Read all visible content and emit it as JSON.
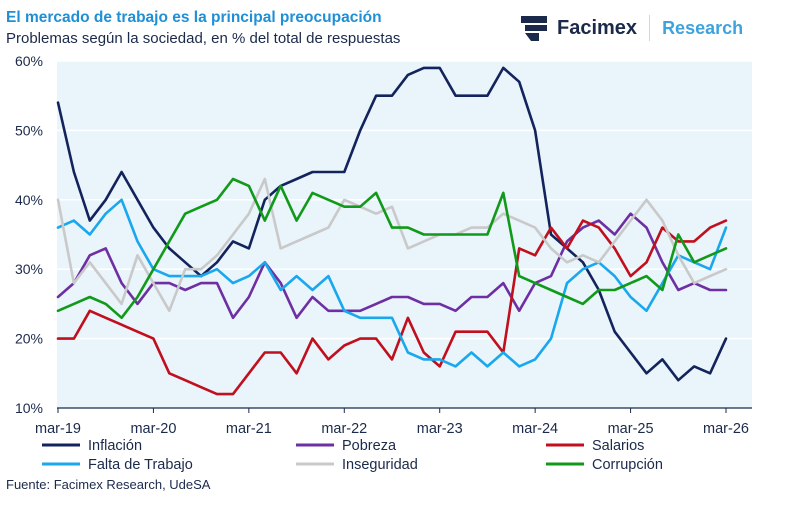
{
  "header": {
    "title": "El mercado de trabajo es la principal preocupación",
    "subtitle": "Problemas según la sociedad, en % del total de respuestas"
  },
  "logo": {
    "brand": "Facimex",
    "tagline": "Research"
  },
  "source": "Fuente: Facimex Research, UdeSA",
  "colors": {
    "plot_background": "#eaf4fb",
    "grid": "#ffffff",
    "axis": "#1b2a4a"
  },
  "chart_data": {
    "type": "line",
    "title": "El mercado de trabajo es la principal preocupación",
    "subtitle": "Problemas según la sociedad, en % del total de respuestas",
    "xlabel": "",
    "ylabel": "",
    "ylim": [
      10,
      60
    ],
    "y_ticks": [
      10,
      20,
      30,
      40,
      50,
      60
    ],
    "y_tick_labels": [
      "10%",
      "20%",
      "30%",
      "40%",
      "50%",
      "60%"
    ],
    "x_range": [
      0,
      42
    ],
    "x_ticks": [
      {
        "x": 0,
        "label": "mar-19"
      },
      {
        "x": 6,
        "label": "mar-20"
      },
      {
        "x": 12,
        "label": "mar-21"
      },
      {
        "x": 18,
        "label": "mar-22"
      },
      {
        "x": 24,
        "label": "mar-23"
      },
      {
        "x": 30,
        "label": "mar-24"
      },
      {
        "x": 36,
        "label": "mar-25"
      },
      {
        "x": 42,
        "label": "mar-26"
      }
    ],
    "legend": "bottom",
    "series": [
      {
        "name": "Inflación",
        "color": "#13245c",
        "x": [
          0,
          1,
          2,
          3,
          4,
          5,
          6,
          7,
          8,
          9,
          10,
          11,
          12,
          13,
          14,
          15,
          16,
          17,
          18,
          19,
          20,
          21,
          22,
          23,
          24,
          25,
          26,
          27,
          28,
          29,
          30,
          31,
          32,
          33,
          34,
          35,
          36,
          37,
          38,
          39,
          40,
          41,
          42
        ],
        "values": [
          54,
          44,
          37,
          40,
          44,
          40,
          36,
          33,
          31,
          29,
          31,
          34,
          33,
          40,
          42,
          43,
          44,
          44,
          44,
          50,
          55,
          55,
          58,
          59,
          59,
          55,
          55,
          55,
          59,
          57,
          50,
          35,
          33,
          31,
          27,
          21,
          18,
          15,
          17,
          14,
          16,
          15,
          20
        ]
      },
      {
        "name": "Pobreza",
        "color": "#6e2fa3",
        "x": [
          0,
          1,
          2,
          3,
          4,
          5,
          6,
          7,
          8,
          9,
          10,
          11,
          12,
          13,
          14,
          15,
          16,
          17,
          18,
          19,
          20,
          21,
          22,
          23,
          24,
          25,
          26,
          27,
          28,
          29,
          30,
          31,
          32,
          33,
          34,
          35,
          36,
          37,
          38,
          39,
          40,
          41,
          42
        ],
        "values": [
          26,
          28,
          32,
          33,
          28,
          25,
          28,
          28,
          27,
          28,
          28,
          23,
          26,
          31,
          28,
          23,
          26,
          24,
          24,
          24,
          25,
          26,
          26,
          25,
          25,
          24,
          26,
          26,
          28,
          24,
          28,
          29,
          34,
          36,
          37,
          35,
          38,
          36,
          31,
          27,
          28,
          27,
          27
        ]
      },
      {
        "name": "Salarios",
        "color": "#c00f1d",
        "x": [
          0,
          1,
          2,
          3,
          4,
          5,
          6,
          7,
          8,
          9,
          10,
          11,
          12,
          13,
          14,
          15,
          16,
          17,
          18,
          19,
          20,
          21,
          22,
          23,
          24,
          25,
          26,
          27,
          28,
          29,
          30,
          31,
          32,
          33,
          34,
          35,
          36,
          37,
          38,
          39,
          40,
          41,
          42
        ],
        "values": [
          20,
          20,
          24,
          23,
          22,
          21,
          20,
          15,
          14,
          13,
          12,
          12,
          15,
          18,
          18,
          15,
          20,
          17,
          19,
          20,
          20,
          17,
          23,
          18,
          16,
          21,
          21,
          21,
          18,
          33,
          32,
          36,
          33,
          37,
          36,
          33,
          29,
          31,
          36,
          34,
          34,
          36,
          37
        ]
      },
      {
        "name": "Falta de Trabajo",
        "color": "#19a7ee",
        "x": [
          0,
          1,
          2,
          3,
          4,
          5,
          6,
          7,
          8,
          9,
          10,
          11,
          12,
          13,
          14,
          15,
          16,
          17,
          18,
          19,
          20,
          21,
          22,
          23,
          24,
          25,
          26,
          27,
          28,
          29,
          30,
          31,
          32,
          33,
          34,
          35,
          36,
          37,
          38,
          39,
          40,
          41,
          42
        ],
        "values": [
          36,
          37,
          35,
          38,
          40,
          34,
          30,
          29,
          29,
          29,
          30,
          28,
          29,
          31,
          27,
          29,
          27,
          29,
          24,
          23,
          23,
          23,
          18,
          17,
          17,
          16,
          18,
          16,
          18,
          16,
          17,
          20,
          28,
          30,
          31,
          29,
          26,
          24,
          28,
          32,
          31,
          30,
          36
        ]
      },
      {
        "name": "Inseguridad",
        "color": "#c9c9c9",
        "x": [
          0,
          1,
          2,
          3,
          4,
          5,
          6,
          7,
          8,
          9,
          10,
          11,
          12,
          13,
          14,
          15,
          16,
          17,
          18,
          19,
          20,
          21,
          22,
          23,
          24,
          25,
          26,
          27,
          28,
          29,
          30,
          31,
          32,
          33,
          34,
          35,
          36,
          37,
          38,
          39,
          40,
          41,
          42
        ],
        "values": [
          40,
          28,
          31,
          28,
          25,
          32,
          28,
          24,
          30,
          30,
          32,
          35,
          38,
          43,
          33,
          34,
          35,
          36,
          40,
          39,
          38,
          39,
          33,
          34,
          35,
          35,
          36,
          36,
          38,
          37,
          36,
          33,
          31,
          32,
          31,
          34,
          37,
          40,
          37,
          32,
          28,
          29,
          30
        ]
      },
      {
        "name": "Corrupción",
        "color": "#119a19",
        "x": [
          0,
          1,
          2,
          3,
          4,
          5,
          6,
          7,
          8,
          9,
          10,
          11,
          12,
          13,
          14,
          15,
          16,
          17,
          18,
          19,
          20,
          21,
          22,
          23,
          24,
          25,
          26,
          27,
          28,
          29,
          30,
          31,
          32,
          33,
          34,
          35,
          36,
          37,
          38,
          39,
          40,
          41,
          42
        ],
        "values": [
          24,
          25,
          26,
          25,
          23,
          26,
          30,
          34,
          38,
          39,
          40,
          43,
          42,
          37,
          42,
          37,
          41,
          40,
          39,
          39,
          41,
          36,
          36,
          35,
          35,
          35,
          35,
          35,
          41,
          29,
          28,
          27,
          26,
          25,
          27,
          27,
          28,
          29,
          27,
          35,
          31,
          32,
          33
        ]
      }
    ]
  }
}
